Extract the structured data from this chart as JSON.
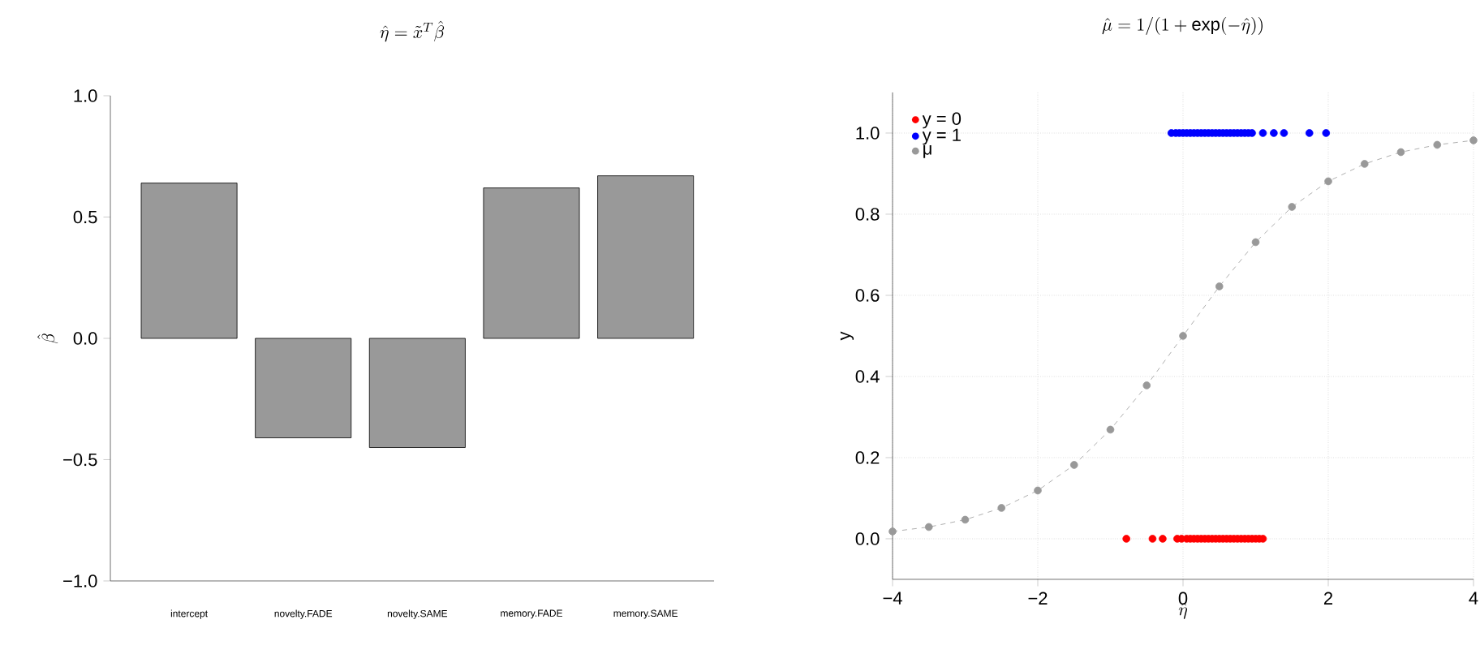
{
  "chart_data": [
    {
      "type": "bar",
      "title": "\\hat{\\eta} = \\tilde{x}^{T}\\hat{\\beta}",
      "ylabel": "\\hat{\\beta}",
      "categories": [
        "intercept",
        "novelty.FADE",
        "novelty.SAME",
        "memory.FADE",
        "memory.SAME"
      ],
      "values": [
        0.64,
        -0.41,
        -0.45,
        0.62,
        0.67
      ],
      "color": "#999999",
      "ylim": [
        -1,
        1
      ],
      "yticks": [
        {
          "value": -1,
          "label": "−1.0"
        },
        {
          "value": -0.5,
          "label": "−0.5"
        },
        {
          "value": 0,
          "label": "0.0"
        },
        {
          "value": 0.5,
          "label": "0.5"
        },
        {
          "value": 1,
          "label": "1.0"
        }
      ],
      "grid": false
    },
    {
      "type": "scatter",
      "title": "\\hat{\\mu} = 1/(1+\\exp(-\\hat{\\eta}))",
      "xlabel": "\\hat{\\eta}",
      "ylabel": "y",
      "xlim": [
        -4,
        4
      ],
      "ylim": [
        -0.1,
        1.1
      ],
      "xticks": [
        {
          "value": -4,
          "label": "−4"
        },
        {
          "value": -2,
          "label": "−2"
        },
        0,
        2,
        4
      ],
      "yticks": [
        {
          "value": 0,
          "label": "0.0"
        },
        {
          "value": 0.2,
          "label": "0.2"
        },
        {
          "value": 0.4,
          "label": "0.4"
        },
        {
          "value": 0.6,
          "label": "0.6"
        },
        {
          "value": 0.8,
          "label": "0.8"
        },
        {
          "value": 1,
          "label": "1.0"
        }
      ],
      "grid": true,
      "legend": "top left",
      "marker": "circle",
      "series": [
        {
          "name": "y = 0",
          "type": "scatter",
          "color": "#ff0000",
          "x": [
            -0.78,
            -0.42,
            -0.28,
            -0.08,
            -0.02,
            0.05,
            0.1,
            0.15,
            0.2,
            0.25,
            0.3,
            0.35,
            0.4,
            0.45,
            0.5,
            0.55,
            0.6,
            0.65,
            0.7,
            0.75,
            0.8,
            0.85,
            0.9,
            0.95,
            1.0,
            1.05,
            1.1
          ],
          "values": [
            0,
            0,
            0,
            0,
            0,
            0,
            0,
            0,
            0,
            0,
            0,
            0,
            0,
            0,
            0,
            0,
            0,
            0,
            0,
            0,
            0,
            0,
            0,
            0,
            0,
            0,
            0
          ]
        },
        {
          "name": "y = 1",
          "type": "scatter",
          "color": "#0000ff",
          "x": [
            -0.16,
            -0.1,
            -0.05,
            0.0,
            0.05,
            0.1,
            0.15,
            0.2,
            0.25,
            0.3,
            0.35,
            0.4,
            0.45,
            0.5,
            0.55,
            0.6,
            0.65,
            0.7,
            0.75,
            0.8,
            0.85,
            0.9,
            0.95,
            1.1,
            1.25,
            1.39,
            1.74,
            1.97
          ],
          "values": [
            1,
            1,
            1,
            1,
            1,
            1,
            1,
            1,
            1,
            1,
            1,
            1,
            1,
            1,
            1,
            1,
            1,
            1,
            1,
            1,
            1,
            1,
            1,
            1,
            1,
            1,
            1,
            1
          ]
        },
        {
          "name": "μ",
          "type": "line",
          "line_style": "dashed",
          "color": "#999999",
          "x": [
            -4,
            -3.5,
            -3,
            -2.5,
            -2,
            -1.5,
            -1,
            -0.5,
            0,
            0.5,
            1,
            1.5,
            2,
            2.5,
            3,
            3.5,
            4
          ],
          "values": [
            0.018,
            0.029,
            0.047,
            0.076,
            0.119,
            0.182,
            0.269,
            0.378,
            0.5,
            0.622,
            0.731,
            0.818,
            0.881,
            0.924,
            0.953,
            0.971,
            0.982
          ]
        }
      ]
    }
  ]
}
